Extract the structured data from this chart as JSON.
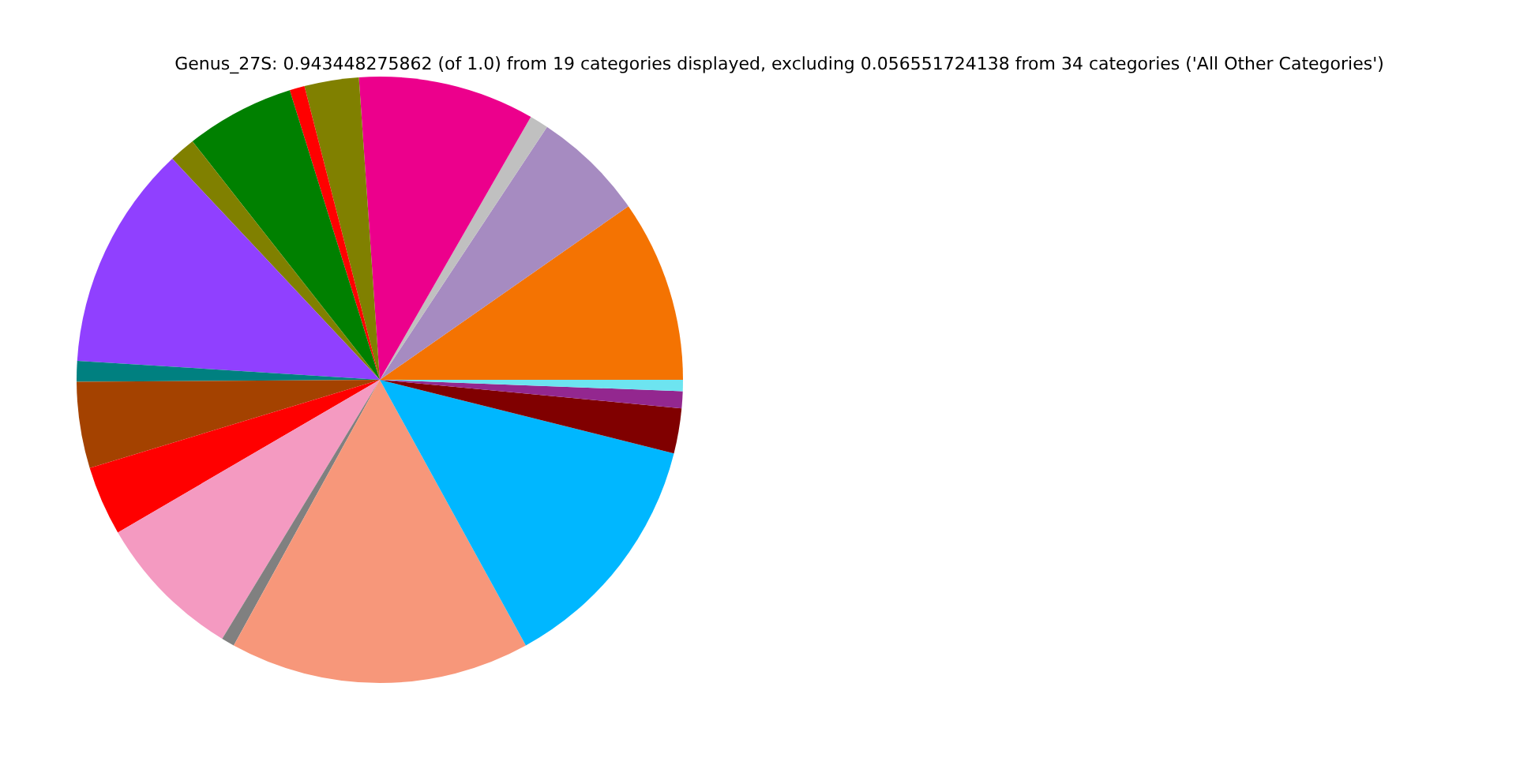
{
  "chart_data": {
    "type": "pie",
    "title": "Genus_27S: 0.943448275862 (of 1.0) from 19 categories displayed, excluding 0.056551724138 from 34 categories ('All Other Categories')",
    "categories": [
      null,
      null,
      null,
      null,
      null,
      null,
      null,
      null,
      null,
      null,
      null,
      null,
      null,
      null,
      null,
      null,
      null,
      null,
      null
    ],
    "values": [
      9.7,
      6.0,
      1.0,
      9.4,
      2.9,
      0.8,
      5.8,
      1.4,
      12.0,
      1.1,
      4.6,
      3.7,
      7.9,
      0.7,
      16.0,
      13.1,
      2.4,
      0.9,
      0.6
    ],
    "colors": [
      "#f47302",
      "#a68bc1",
      "#c0c0c0",
      "#ec008c",
      "#808000",
      "#ff0000",
      "#008000",
      "#808000",
      "#9040ff",
      "#008080",
      "#a44200",
      "#ff0000",
      "#f49ac1",
      "#808080",
      "#f7977a",
      "#00b7ff",
      "#800000",
      "#93278f",
      "#6de4f0"
    ]
  }
}
